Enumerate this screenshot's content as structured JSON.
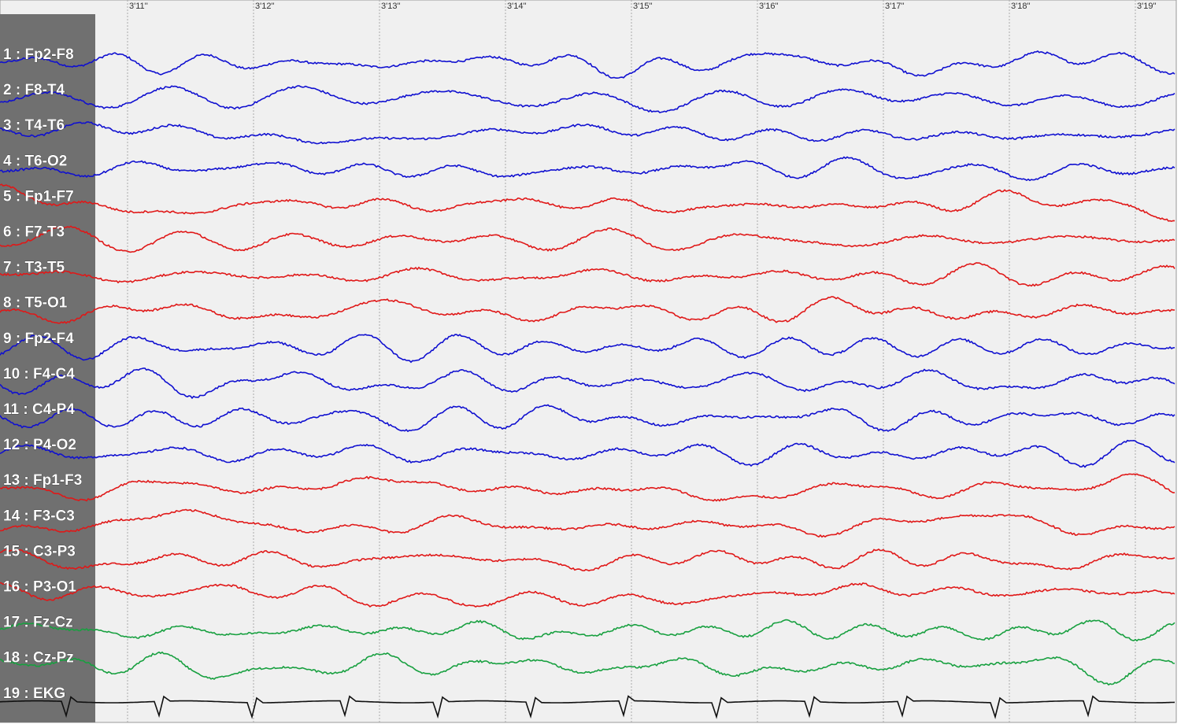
{
  "time_labels": [
    "3'11''",
    "3'12''",
    "3'13''",
    "3'14''",
    "3'15''",
    "3'16''",
    "3'17''",
    "3'18''",
    "3'19''"
  ],
  "channels": [
    {
      "label": "1 : Fp2-F8",
      "color": "#1010d0"
    },
    {
      "label": "2 : F8-T4",
      "color": "#1010d0"
    },
    {
      "label": "3 : T4-T6",
      "color": "#1010d0"
    },
    {
      "label": "4 : T6-O2",
      "color": "#1010d0"
    },
    {
      "label": "5 : Fp1-F7",
      "color": "#e01818"
    },
    {
      "label": "6 : F7-T3",
      "color": "#e01818"
    },
    {
      "label": "7 : T3-T5",
      "color": "#e01818"
    },
    {
      "label": "8 : T5-O1",
      "color": "#e01818"
    },
    {
      "label": "9 : Fp2-F4",
      "color": "#1010d0"
    },
    {
      "label": "10 : F4-C4",
      "color": "#1010d0"
    },
    {
      "label": "11 : C4-P4",
      "color": "#1010d0"
    },
    {
      "label": "12 : P4-O2",
      "color": "#1010d0"
    },
    {
      "label": "13 : Fp1-F3",
      "color": "#e01818"
    },
    {
      "label": "14 : F3-C3",
      "color": "#e01818"
    },
    {
      "label": "15 : C3-P3",
      "color": "#e01818"
    },
    {
      "label": "16 : P3-O1",
      "color": "#e01818"
    },
    {
      "label": "17 : Fz-Cz",
      "color": "#18a040"
    },
    {
      "label": "18 : Cz-Pz",
      "color": "#18a040"
    },
    {
      "label": "19 : EKG",
      "color": "#101010",
      "label_color": "#ffff30"
    }
  ]
}
